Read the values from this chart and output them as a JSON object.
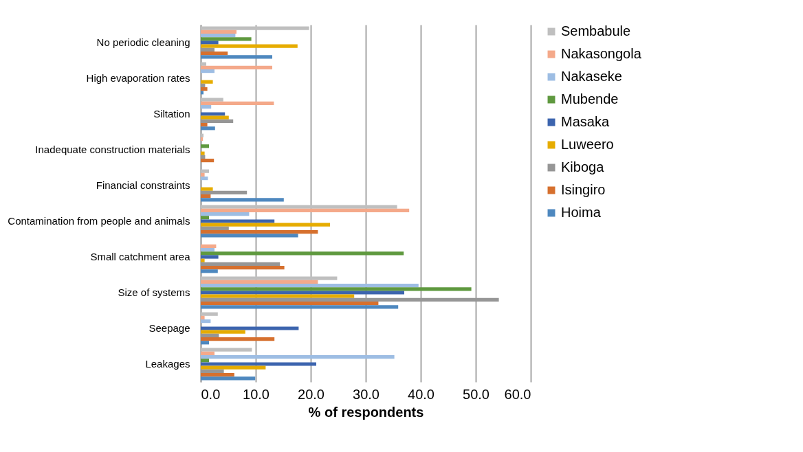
{
  "chart_data": {
    "type": "bar",
    "orientation": "horizontal",
    "xlabel": "% of respondents",
    "categories": [
      "No periodic cleaning",
      "High evaporation rates",
      "Siltation",
      "Inadequate construction materials",
      "Financial constraints",
      "Contamination from people and animals",
      "Small catchment area",
      "Size of systems",
      "Seepage",
      "Leakages"
    ],
    "series": [
      {
        "name": "Sembabule",
        "color": "#bfbfbf",
        "values": [
          19.7,
          1.0,
          4.1,
          0.5,
          1.5,
          35.7,
          0,
          24.8,
          3.1,
          9.3
        ]
      },
      {
        "name": "Nakasongola",
        "color": "#f4a98a",
        "values": [
          6.5,
          13.0,
          13.3,
          0.4,
          0.7,
          37.9,
          2.8,
          21.3,
          0.7,
          2.5
        ]
      },
      {
        "name": "Nakaseke",
        "color": "#9dbde3",
        "values": [
          6.3,
          2.5,
          1.9,
          0,
          1.3,
          8.8,
          2.5,
          39.6,
          1.8,
          35.2
        ]
      },
      {
        "name": "Mubende",
        "color": "#5f993f",
        "values": [
          9.2,
          0,
          0,
          1.5,
          0,
          1.5,
          36.9,
          49.2,
          0,
          1.5
        ]
      },
      {
        "name": "Masaka",
        "color": "#3c64ae",
        "values": [
          3.2,
          0,
          4.4,
          0,
          0,
          13.4,
          3.2,
          37.0,
          17.8,
          21.0
        ]
      },
      {
        "name": "Luweero",
        "color": "#e6ac00",
        "values": [
          17.6,
          2.2,
          5.1,
          0.7,
          2.2,
          23.5,
          0.7,
          27.9,
          8.1,
          11.8
        ]
      },
      {
        "name": "Kiboga",
        "color": "#969696",
        "values": [
          2.5,
          0.8,
          5.9,
          0.8,
          8.4,
          5.1,
          14.4,
          54.2,
          3.3,
          4.2
        ]
      },
      {
        "name": "Isingiro",
        "color": "#d6702e",
        "values": [
          4.9,
          1.2,
          1.2,
          2.4,
          1.8,
          21.3,
          15.2,
          32.3,
          13.4,
          6.1
        ]
      },
      {
        "name": "Hoima",
        "color": "#4e88bf",
        "values": [
          13.0,
          0.5,
          2.6,
          0,
          15.1,
          17.7,
          3.1,
          35.9,
          1.5,
          9.9
        ]
      }
    ],
    "xlim": [
      0,
      60
    ],
    "xticks": [
      {
        "value": 0,
        "label": "0.0"
      },
      {
        "value": 10,
        "label": "10.0"
      },
      {
        "value": 20,
        "label": "20.0"
      },
      {
        "value": 30,
        "label": "30.0"
      },
      {
        "value": 40,
        "label": "40.0"
      },
      {
        "value": 50,
        "label": "50.0"
      },
      {
        "value": 60,
        "label": "60.0"
      }
    ],
    "grid": "x",
    "legend": "right"
  }
}
